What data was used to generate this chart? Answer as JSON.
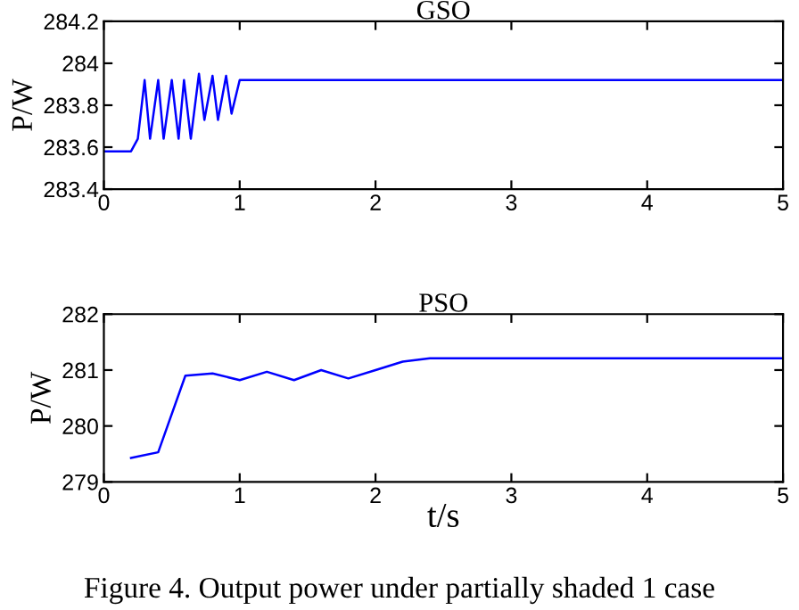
{
  "chart_data": [
    {
      "type": "line",
      "title": "GSO",
      "ylabel": "P/W",
      "xlim": [
        0,
        5
      ],
      "ylim": [
        283.4,
        284.2
      ],
      "xticks": [
        0,
        1,
        2,
        3,
        4,
        5
      ],
      "yticks": [
        283.4,
        283.6,
        283.8,
        284,
        284.2
      ],
      "grid": false,
      "legend": false,
      "series": [
        {
          "color": "#0000ff",
          "x": [
            0,
            0.2,
            0.25,
            0.3,
            0.34,
            0.4,
            0.44,
            0.5,
            0.55,
            0.59,
            0.64,
            0.7,
            0.74,
            0.8,
            0.84,
            0.9,
            0.94,
            1.0,
            5
          ],
          "values": [
            283.58,
            283.58,
            283.64,
            283.92,
            283.64,
            283.92,
            283.64,
            283.92,
            283.64,
            283.92,
            283.64,
            283.95,
            283.73,
            283.94,
            283.73,
            283.94,
            283.76,
            283.92,
            283.92
          ]
        }
      ]
    },
    {
      "type": "line",
      "title": "PSO",
      "ylabel": "P/W",
      "xlabel": "t/s",
      "xlim": [
        0,
        5
      ],
      "ylim": [
        279,
        282
      ],
      "xticks": [
        0,
        1,
        2,
        3,
        4,
        5
      ],
      "yticks": [
        279,
        280,
        281,
        282
      ],
      "grid": false,
      "legend": false,
      "annotations": [
        "Figure 4. Output power under partially shaded 1 case"
      ],
      "series": [
        {
          "color": "#0000ff",
          "x": [
            0.2,
            0.4,
            0.6,
            0.8,
            1.0,
            1.2,
            1.4,
            1.6,
            1.8,
            2.0,
            2.2,
            2.4,
            5
          ],
          "values": [
            279.43,
            279.53,
            280.9,
            280.94,
            280.82,
            280.97,
            280.82,
            281.0,
            280.85,
            281.0,
            281.15,
            281.21,
            281.21
          ]
        }
      ]
    }
  ]
}
